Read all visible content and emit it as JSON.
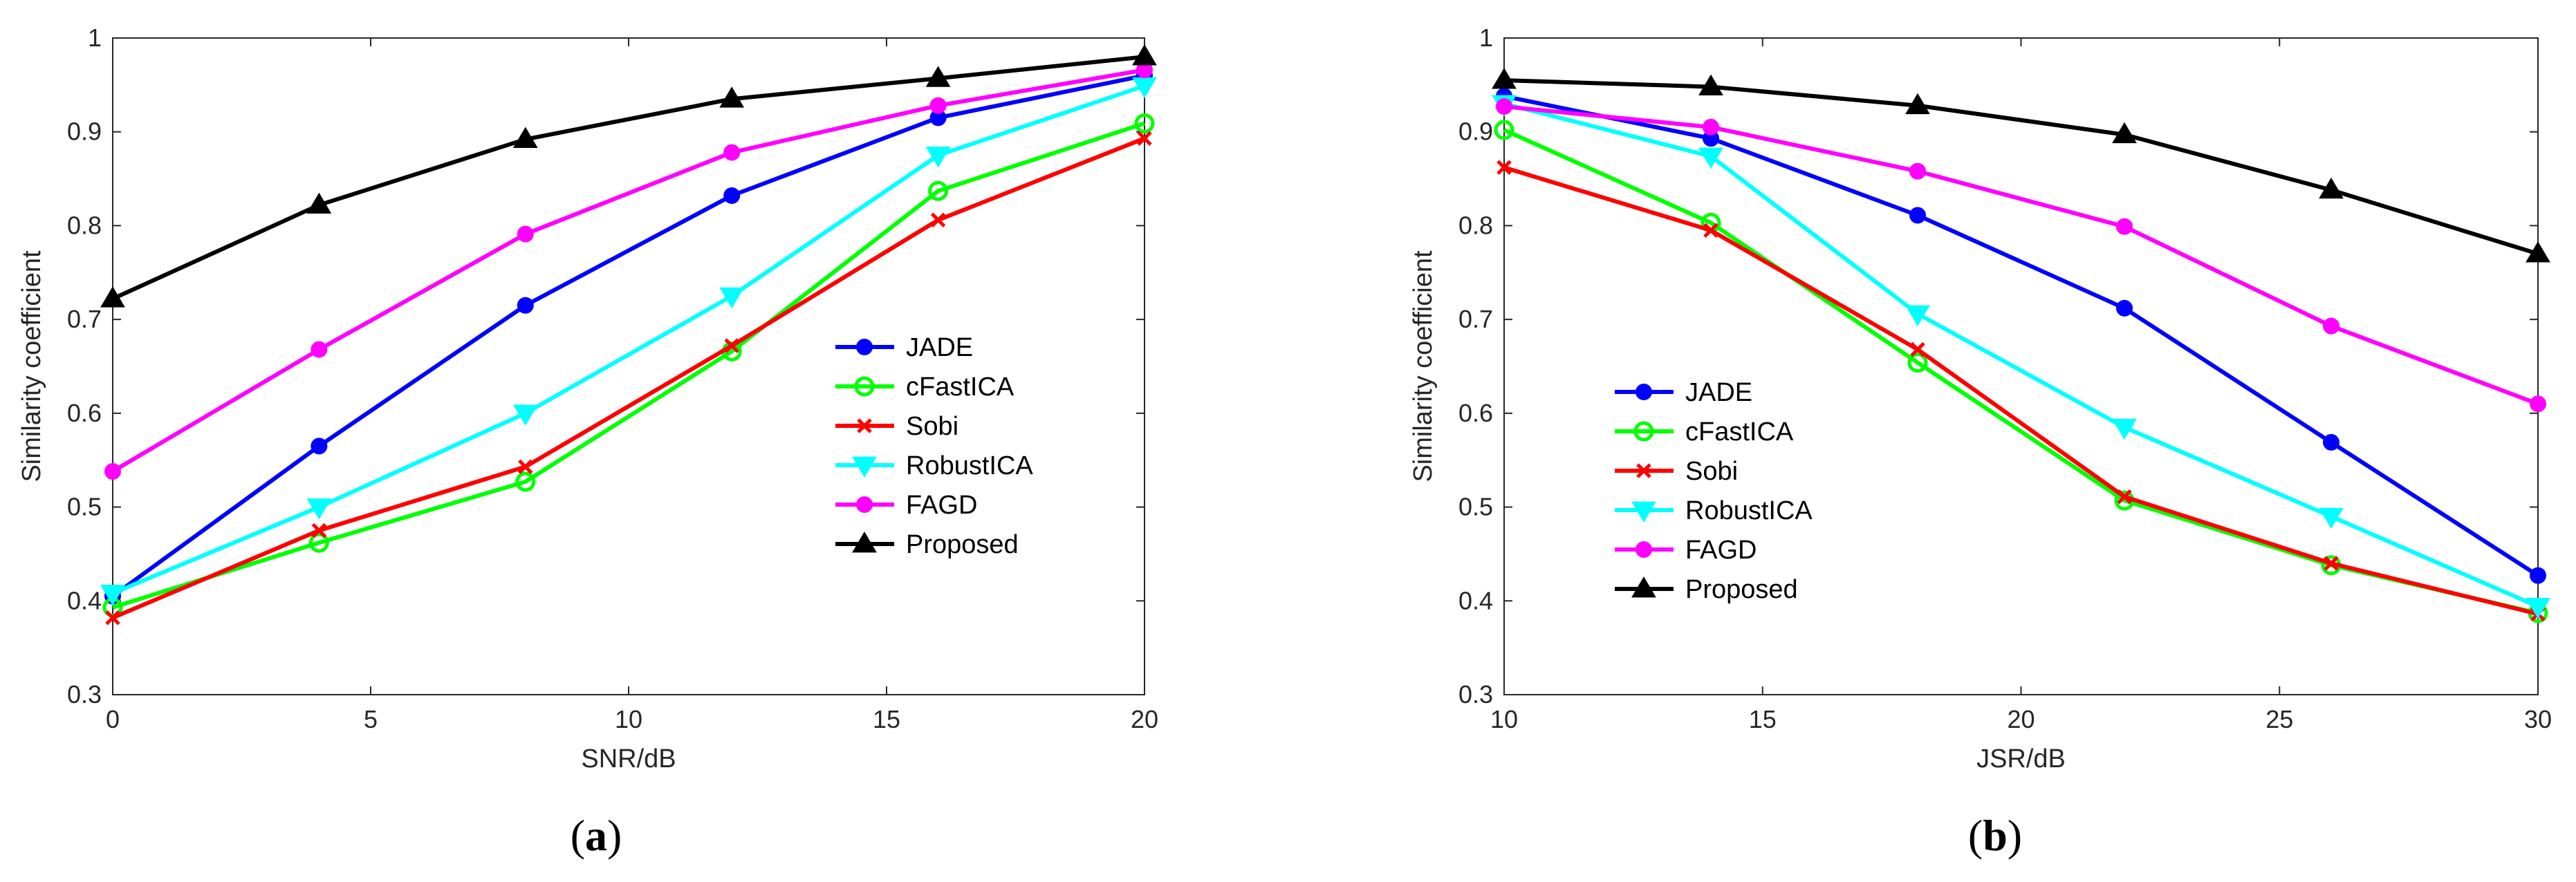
{
  "chart_data": [
    {
      "type": "line",
      "caption_letter": "a",
      "xlabel": "SNR/dB",
      "ylabel": "Similarity coefficient",
      "xlim": [
        0,
        20
      ],
      "ylim": [
        0.3,
        1
      ],
      "xticks": [
        0,
        5,
        10,
        15,
        20
      ],
      "xtick_labels": [
        "0",
        "5",
        "10",
        "15",
        "20"
      ],
      "yticks": [
        0.3,
        0.4,
        0.5,
        0.6,
        0.7,
        0.8,
        0.9,
        1.0
      ],
      "ytick_labels": [
        "0.3",
        "0.4",
        "0.5",
        "0.6",
        "0.7",
        "0.8",
        "0.9",
        "1"
      ],
      "legend_position": "lower-right",
      "x": [
        0,
        4,
        8,
        12,
        16,
        20
      ],
      "series": [
        {
          "name": "JADE",
          "color": "#0000ff",
          "marker": "circle-filled",
          "values": [
            0.405,
            0.565,
            0.715,
            0.832,
            0.915,
            0.96
          ]
        },
        {
          "name": "cFastICA",
          "color": "#00ff00",
          "marker": "circle-open",
          "values": [
            0.393,
            0.462,
            0.527,
            0.666,
            0.837,
            0.909
          ]
        },
        {
          "name": "Sobi",
          "color": "#ff0000",
          "marker": "x",
          "values": [
            0.382,
            0.475,
            0.543,
            0.672,
            0.806,
            0.893
          ]
        },
        {
          "name": "RobustICA",
          "color": "#00ffff",
          "marker": "triangle-down",
          "values": [
            0.408,
            0.5,
            0.6,
            0.725,
            0.875,
            0.949
          ]
        },
        {
          "name": "FAGD",
          "color": "#ff00ff",
          "marker": "circle-filled",
          "values": [
            0.538,
            0.668,
            0.791,
            0.878,
            0.928,
            0.966
          ]
        },
        {
          "name": "Proposed",
          "color": "#000000",
          "marker": "triangle-up",
          "values": [
            0.722,
            0.822,
            0.892,
            0.935,
            0.957,
            0.98
          ]
        }
      ]
    },
    {
      "type": "line",
      "caption_letter": "b",
      "xlabel": "JSR/dB",
      "ylabel": "Similarity coefficient",
      "xlim": [
        10,
        30
      ],
      "ylim": [
        0.3,
        1
      ],
      "xticks": [
        10,
        15,
        20,
        25,
        30
      ],
      "xtick_labels": [
        "10",
        "15",
        "20",
        "25",
        "30"
      ],
      "yticks": [
        0.3,
        0.4,
        0.5,
        0.6,
        0.7,
        0.8,
        0.9,
        1.0
      ],
      "ytick_labels": [
        "0.3",
        "0.4",
        "0.5",
        "0.6",
        "0.7",
        "0.8",
        "0.9",
        "1"
      ],
      "legend_position": "lower-left",
      "x": [
        10,
        14,
        18,
        22,
        26,
        30
      ],
      "series": [
        {
          "name": "JADE",
          "color": "#0000ff",
          "marker": "circle-filled",
          "values": [
            0.938,
            0.893,
            0.811,
            0.712,
            0.569,
            0.427
          ]
        },
        {
          "name": "cFastICA",
          "color": "#00ff00",
          "marker": "circle-open",
          "values": [
            0.902,
            0.803,
            0.654,
            0.507,
            0.438,
            0.387
          ]
        },
        {
          "name": "Sobi",
          "color": "#ff0000",
          "marker": "x",
          "values": [
            0.862,
            0.795,
            0.668,
            0.511,
            0.44,
            0.386
          ]
        },
        {
          "name": "RobustICA",
          "color": "#00ffff",
          "marker": "triangle-down",
          "values": [
            0.93,
            0.874,
            0.706,
            0.585,
            0.49,
            0.394
          ]
        },
        {
          "name": "FAGD",
          "color": "#ff00ff",
          "marker": "circle-filled",
          "values": [
            0.927,
            0.905,
            0.858,
            0.799,
            0.693,
            0.61
          ]
        },
        {
          "name": "Proposed",
          "color": "#000000",
          "marker": "triangle-up",
          "values": [
            0.955,
            0.948,
            0.928,
            0.897,
            0.838,
            0.77
          ]
        }
      ]
    }
  ]
}
